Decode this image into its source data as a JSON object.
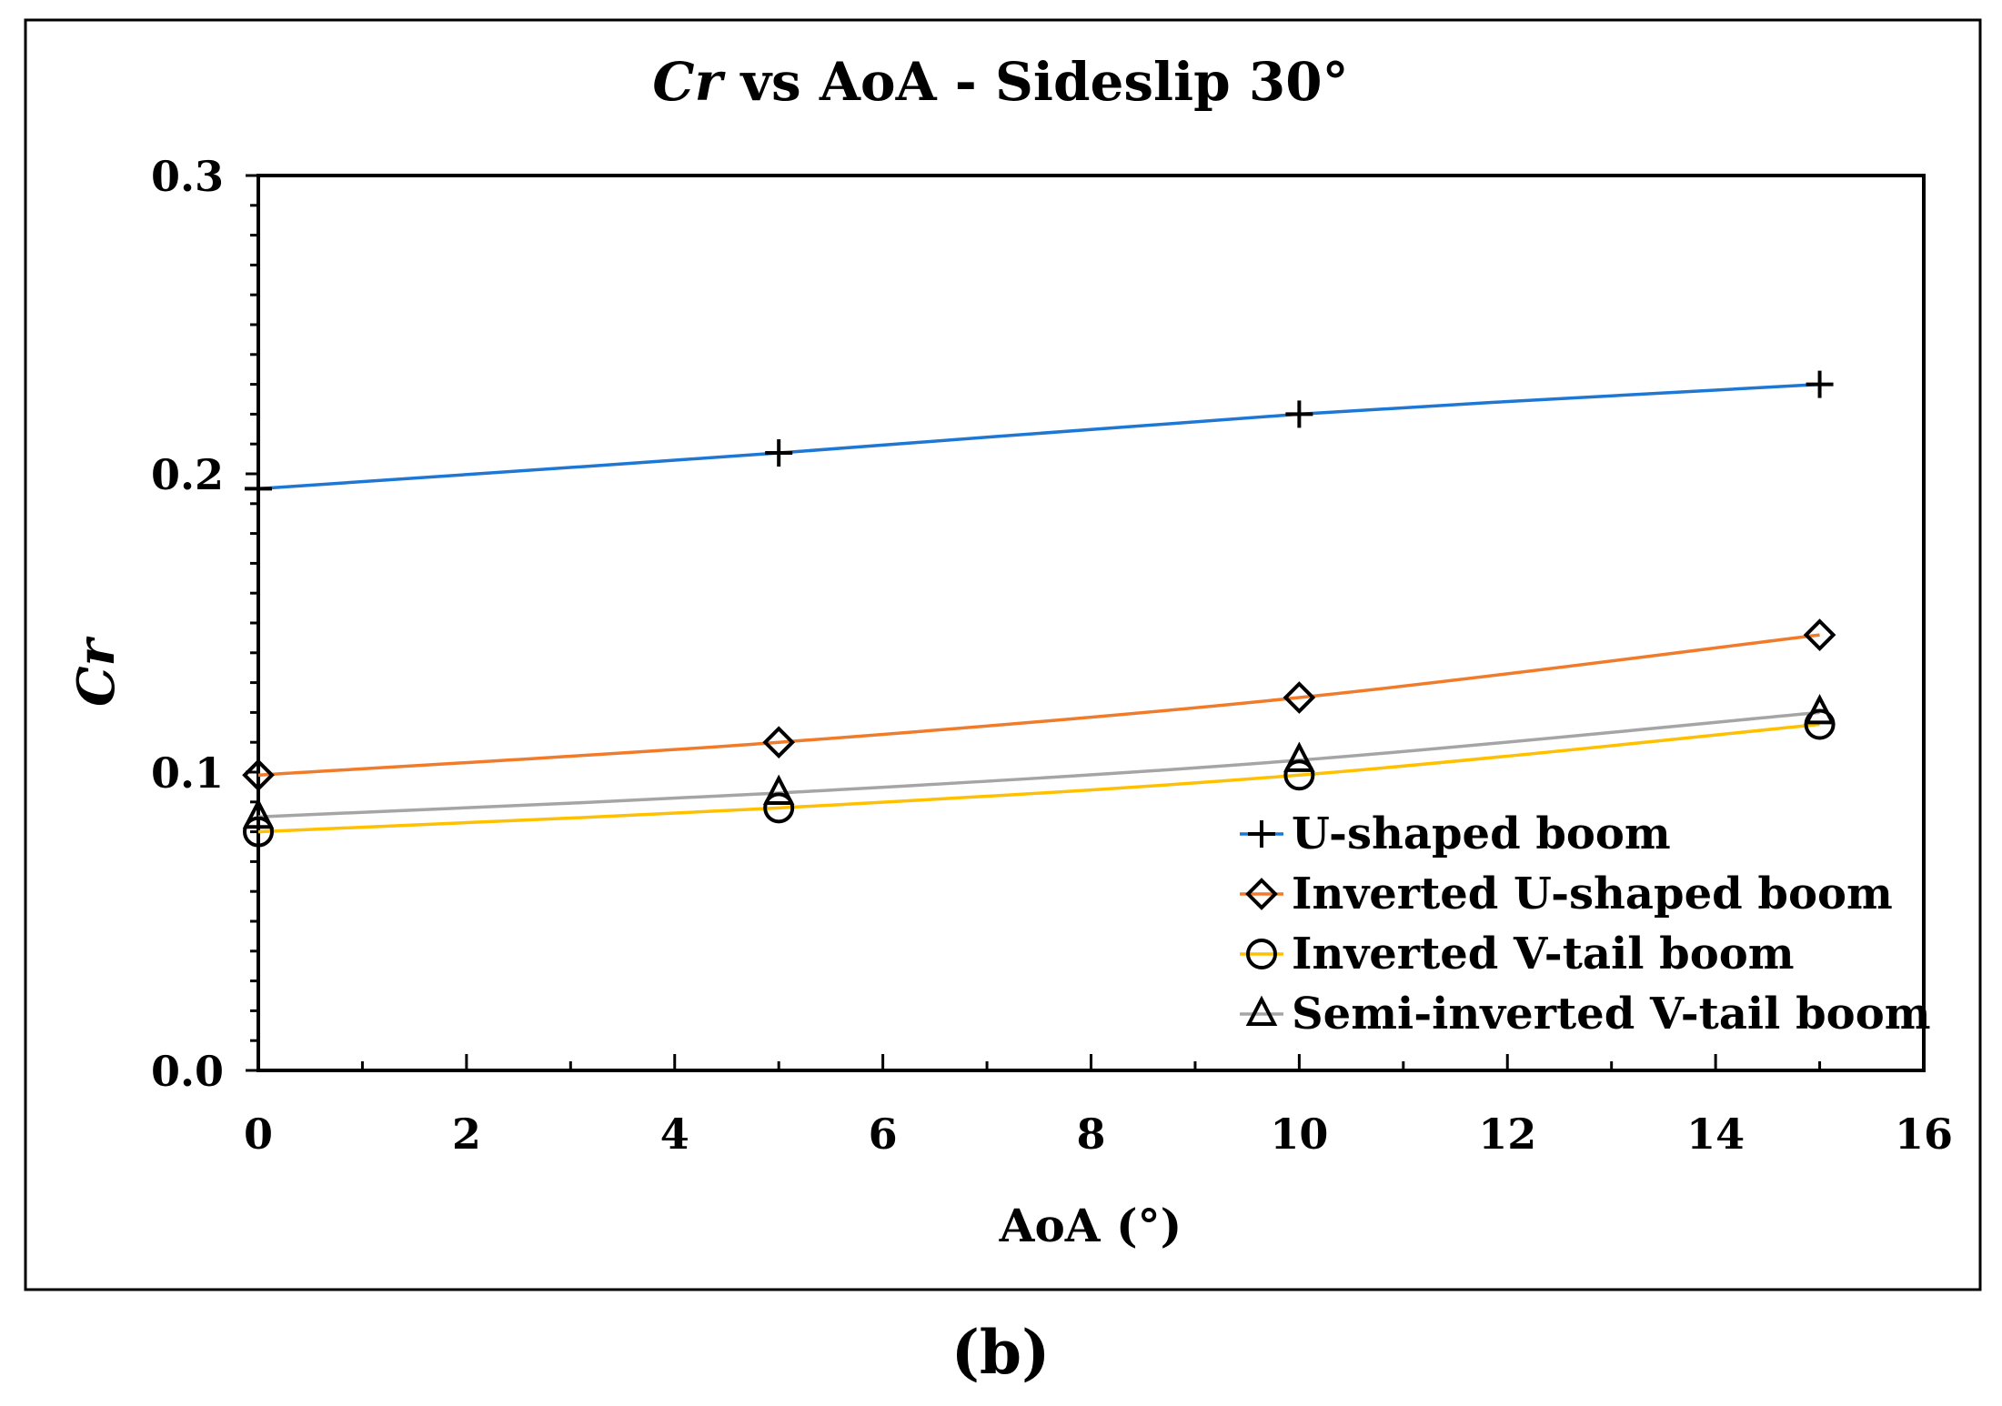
{
  "chart_data": {
    "type": "line",
    "title_italic": "Cr",
    "title_rest": " vs AoA - Sideslip 30°",
    "xlabel": "AoA (°)",
    "ylabel": "Cr",
    "xlim": [
      0,
      16
    ],
    "ylim": [
      0.0,
      0.3
    ],
    "x_ticks": [
      0,
      2,
      4,
      6,
      8,
      10,
      12,
      14,
      16
    ],
    "x_tick_labels": [
      "0",
      "2",
      "4",
      "6",
      "8",
      "10",
      "12",
      "14",
      "16"
    ],
    "y_ticks": [
      0.0,
      0.1,
      0.2,
      0.3
    ],
    "y_tick_labels": [
      "0.0",
      "0.1",
      "0.2",
      "0.3"
    ],
    "legend_position": "bottom-right",
    "grid": false,
    "series": [
      {
        "name": "U-shaped boom",
        "color": "#1f77d4",
        "marker": "plus",
        "x": [
          0,
          5,
          10,
          15
        ],
        "y": [
          0.195,
          0.207,
          0.22,
          0.23
        ]
      },
      {
        "name": "Inverted U-shaped boom",
        "color": "#f07b2a",
        "marker": "diamond",
        "x": [
          0,
          5,
          10,
          15
        ],
        "y": [
          0.099,
          0.11,
          0.125,
          0.146
        ]
      },
      {
        "name": "Inverted V-tail boom",
        "color": "#ffc000",
        "marker": "circle",
        "x": [
          0,
          5,
          10,
          15
        ],
        "y": [
          0.08,
          0.088,
          0.099,
          0.116
        ]
      },
      {
        "name": "Semi-inverted V-tail boom",
        "color": "#a5a5a5",
        "marker": "triangle",
        "x": [
          0,
          5,
          10,
          15
        ],
        "y": [
          0.085,
          0.093,
          0.104,
          0.12
        ]
      }
    ]
  },
  "panel_label": "(b)"
}
